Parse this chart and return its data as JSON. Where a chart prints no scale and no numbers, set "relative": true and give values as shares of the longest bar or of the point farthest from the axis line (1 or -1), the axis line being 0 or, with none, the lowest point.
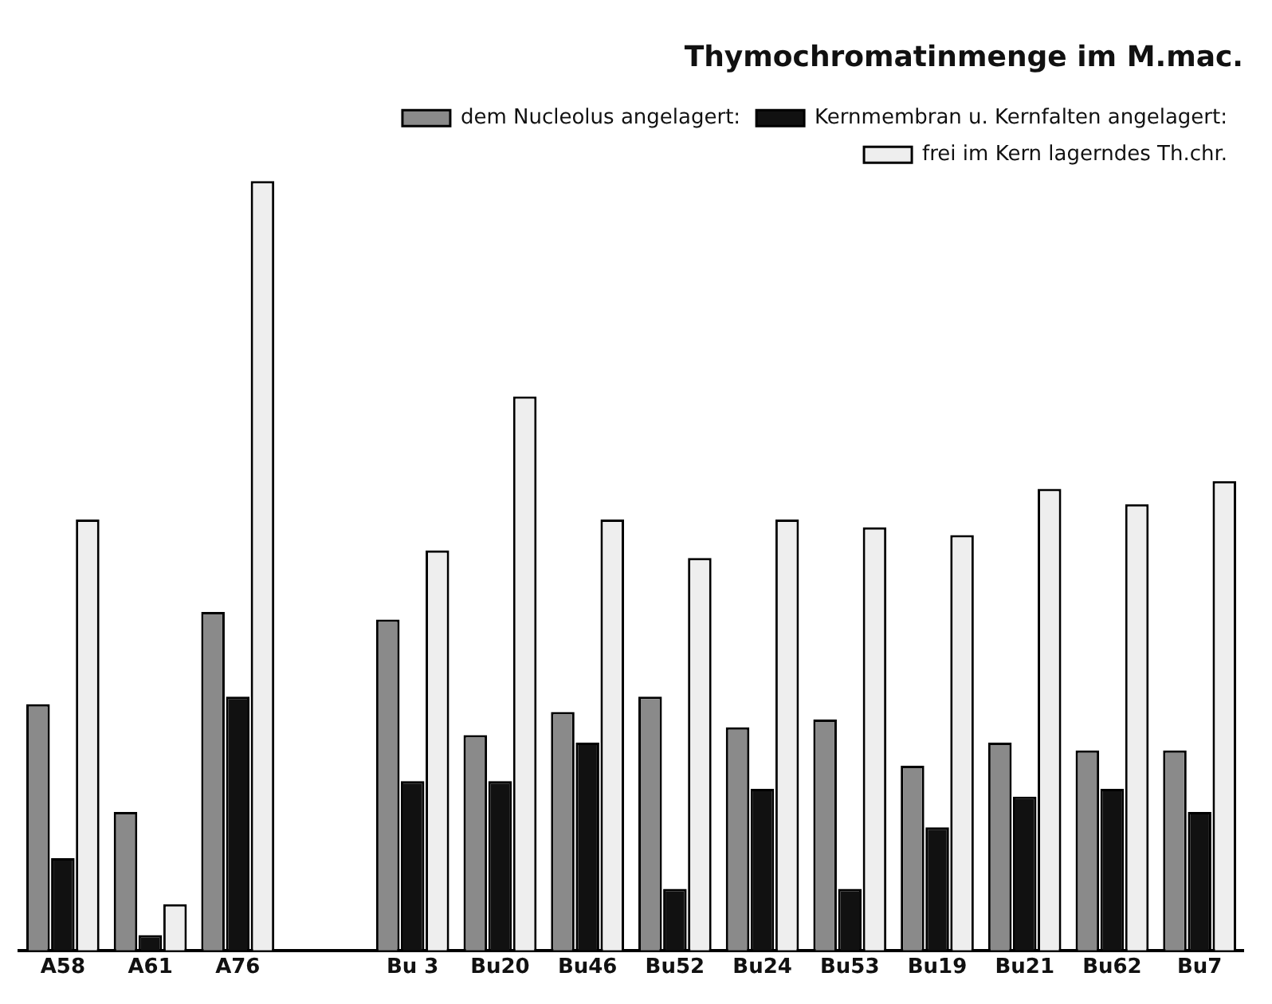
{
  "chart_data": {
    "type": "bar",
    "title": "Thymochromatinmenge im M.mac.",
    "relative": true,
    "legend": "top right",
    "grid": false,
    "categories": [
      "A58",
      "A61",
      "A76",
      null,
      "Bu 3",
      "Bu20",
      "Bu46",
      "Bu52",
      "Bu24",
      "Bu53",
      "Bu19",
      "Bu21",
      "Bu62",
      "Bu7"
    ],
    "series": [
      {
        "name": "dem Nucleolus angelagert:",
        "color": "#8a8a8a",
        "values": [
          0.32,
          0.18,
          0.44,
          null,
          0.43,
          0.28,
          0.31,
          0.33,
          0.29,
          0.3,
          0.24,
          0.27,
          0.26,
          0.26
        ]
      },
      {
        "name": "Kernmembran u. Kernfalten angelagert:",
        "color": "#111111",
        "values": [
          0.12,
          0.02,
          0.33,
          null,
          0.22,
          0.22,
          0.27,
          0.08,
          0.21,
          0.08,
          0.16,
          0.2,
          0.21,
          0.18
        ]
      },
      {
        "name": "frei im Kern lagerndes Th.chr.",
        "color": "#eeeeee",
        "values": [
          0.56,
          0.06,
          1,
          null,
          0.52,
          0.72,
          0.56,
          0.51,
          0.56,
          0.55,
          0.54,
          0.6,
          0.58,
          0.61
        ]
      }
    ]
  }
}
